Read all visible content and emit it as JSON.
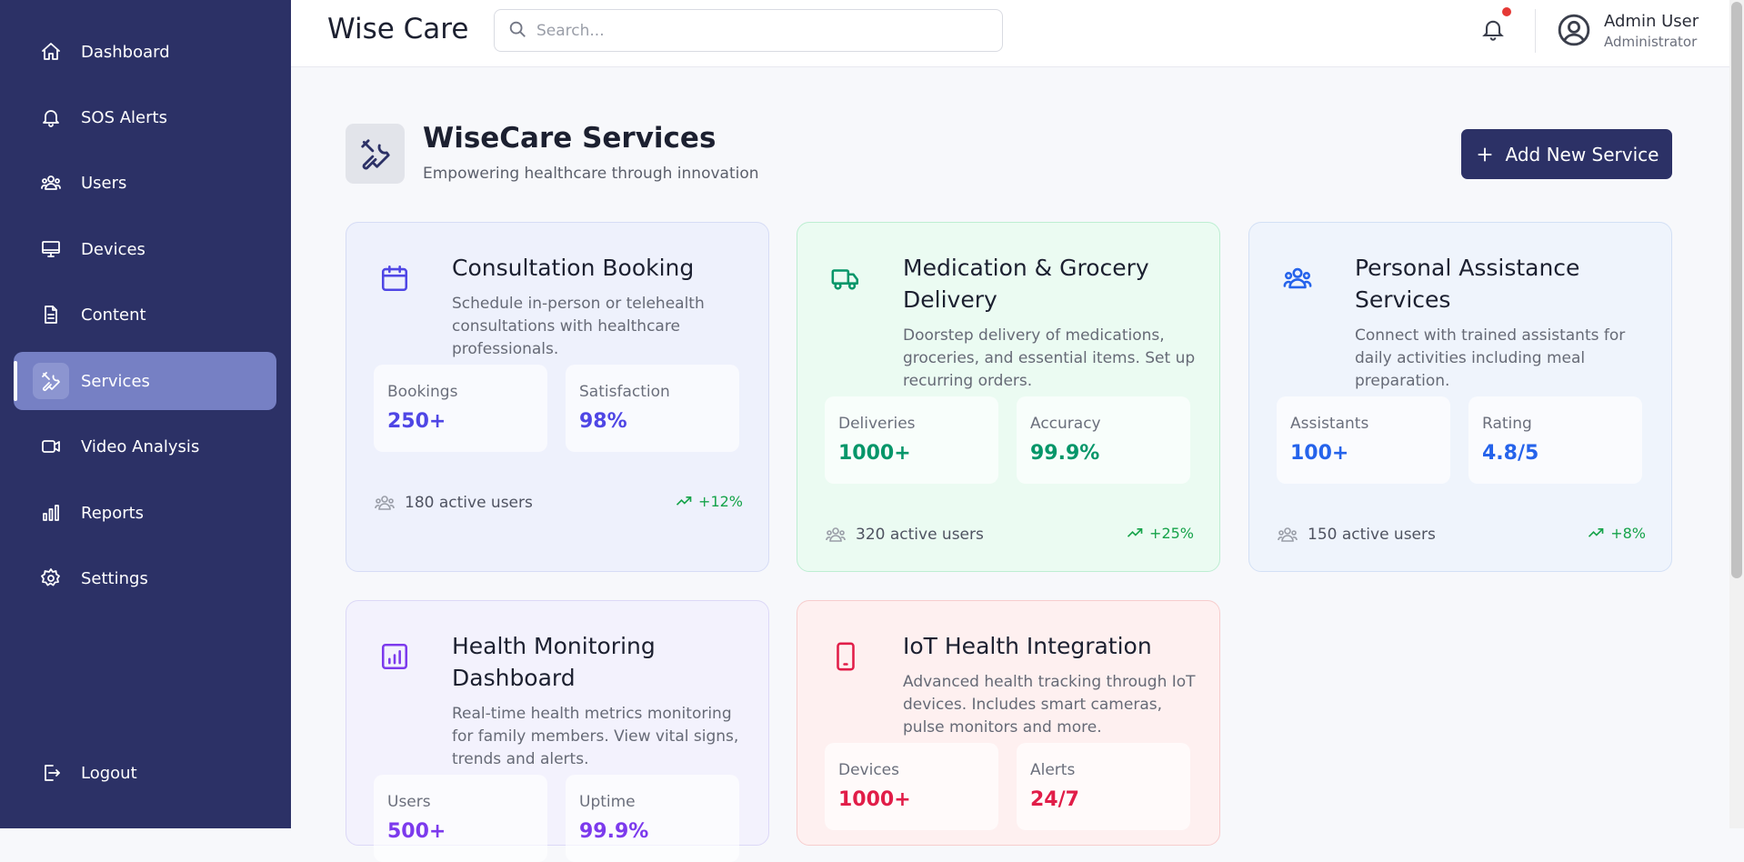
{
  "sidebar": {
    "items": [
      {
        "label": "Dashboard",
        "icon": "home-icon"
      },
      {
        "label": "SOS Alerts",
        "icon": "bell-icon"
      },
      {
        "label": "Users",
        "icon": "users-icon"
      },
      {
        "label": "Devices",
        "icon": "monitor-icon"
      },
      {
        "label": "Content",
        "icon": "document-icon"
      },
      {
        "label": "Services",
        "icon": "tools-icon",
        "active": true
      },
      {
        "label": "Video Analysis",
        "icon": "video-icon"
      },
      {
        "label": "Reports",
        "icon": "bar-chart-icon"
      },
      {
        "label": "Settings",
        "icon": "gear-icon"
      }
    ],
    "logout_label": "Logout"
  },
  "header": {
    "brand": "Wise Care",
    "search_placeholder": "Search...",
    "user_name": "Admin User",
    "user_role": "Administrator",
    "has_notification": true
  },
  "page": {
    "title": "WiseCare Services",
    "subtitle": "Empowering healthcare through innovation",
    "add_button": "Add New Service"
  },
  "cards": [
    {
      "title": "Consultation Booking",
      "description": "Schedule in-person or telehealth consultations with healthcare professionals.",
      "icon": "calendar-icon",
      "accent": "#4f46e5",
      "stats": [
        {
          "label": "Bookings",
          "value": "250+"
        },
        {
          "label": "Satisfaction",
          "value": "98%"
        }
      ],
      "active_users": "180 active users",
      "trend": "+12%"
    },
    {
      "title": "Medication & Grocery Delivery",
      "description": "Doorstep delivery of medications, groceries, and essential items. Set up recurring orders.",
      "icon": "truck-icon",
      "accent": "#059669",
      "stats": [
        {
          "label": "Deliveries",
          "value": "1000+"
        },
        {
          "label": "Accuracy",
          "value": "99.9%"
        }
      ],
      "active_users": "320 active users",
      "trend": "+25%"
    },
    {
      "title": "Personal Assistance Services",
      "description": "Connect with trained assistants for daily activities including meal preparation.",
      "icon": "users-icon",
      "accent": "#2563eb",
      "stats": [
        {
          "label": "Assistants",
          "value": "100+"
        },
        {
          "label": "Rating",
          "value": "4.8/5"
        }
      ],
      "active_users": "150 active users",
      "trend": "+8%"
    },
    {
      "title": "Health Monitoring Dashboard",
      "description": "Real-time health metrics monitoring for family members. View vital signs, trends and alerts.",
      "icon": "chart-icon",
      "accent": "#7c3aed",
      "stats": [
        {
          "label": "Users",
          "value": "500+"
        },
        {
          "label": "Uptime",
          "value": "99.9%"
        }
      ]
    },
    {
      "title": "IoT Health Integration",
      "description": "Advanced health tracking through IoT devices. Includes smart cameras, pulse monitors and more.",
      "icon": "tablet-icon",
      "accent": "#e11d48",
      "stats": [
        {
          "label": "Devices",
          "value": "1000+"
        },
        {
          "label": "Alerts",
          "value": "24/7"
        }
      ]
    }
  ]
}
